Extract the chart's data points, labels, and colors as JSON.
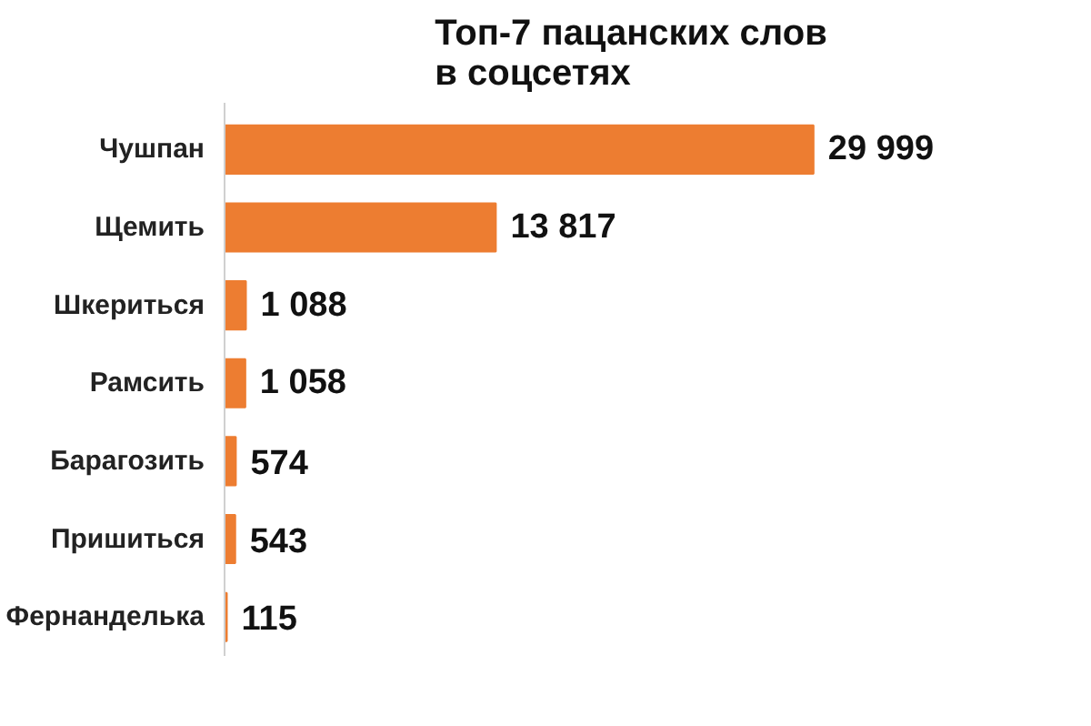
{
  "chart_data": {
    "type": "bar",
    "orientation": "horizontal",
    "title": "Топ-7 пацанских слов\nв соцсетях",
    "categories": [
      "Чушпан",
      "Щемить",
      "Шкериться",
      "Рамсить",
      "Барагозить",
      "Пришиться",
      "Фернанделька"
    ],
    "values": [
      29999,
      13817,
      1088,
      1058,
      574,
      543,
      115
    ],
    "value_labels": [
      "29 999",
      "13 817",
      "1 088",
      "1 058",
      "574",
      "543",
      "115"
    ],
    "color": "#ed7d31",
    "grid": false
  }
}
